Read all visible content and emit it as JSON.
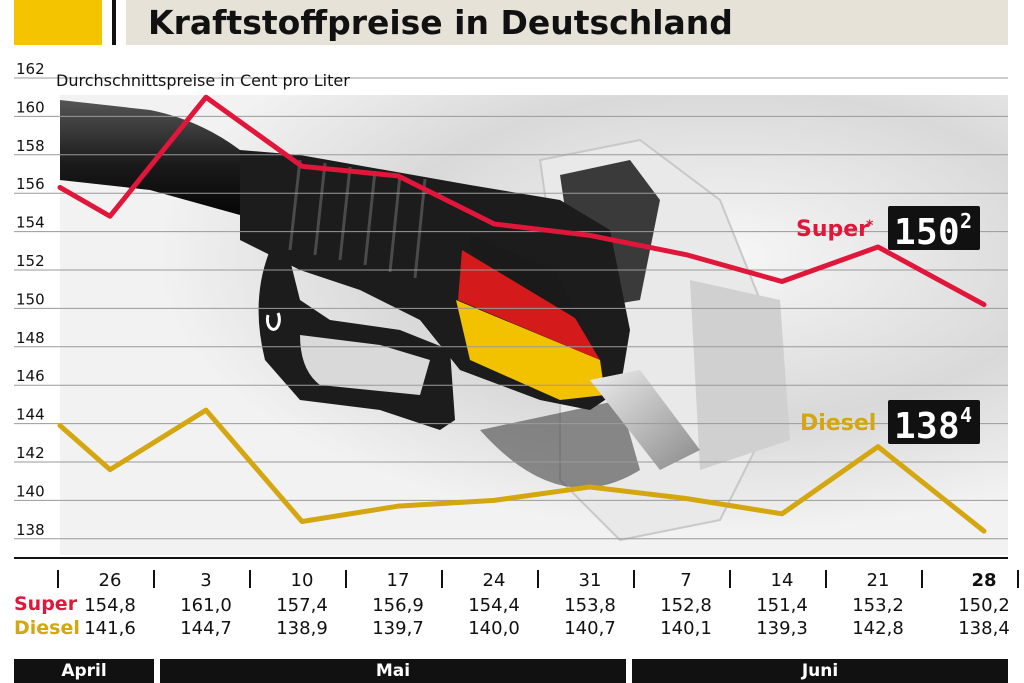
{
  "header": {
    "title": "Kraftstoffpreise in Deutschland"
  },
  "colors": {
    "super": "#e0163a",
    "diesel": "#d4a60f",
    "accent": "#f5c400"
  },
  "table": {
    "super_label": "Super",
    "diesel_label": "Diesel"
  },
  "months": [
    {
      "label": "April"
    },
    {
      "label": "Mai"
    },
    {
      "label": "Juni"
    }
  ],
  "chart_data": {
    "type": "line",
    "subtitle": "Durchschnittspreise in Cent pro Liter",
    "categories": [
      "26",
      "3",
      "10",
      "17",
      "24",
      "31",
      "7",
      "14",
      "21",
      "28"
    ],
    "highlight_category": "28",
    "ylim": [
      137,
      162
    ],
    "yticks": [
      138,
      140,
      142,
      144,
      146,
      148,
      150,
      152,
      154,
      156,
      158,
      160,
      162
    ],
    "grid": true,
    "series": [
      {
        "name": "Super",
        "marker": "*",
        "color": "#e0163a",
        "values": [
          154.8,
          161.0,
          157.4,
          156.9,
          154.4,
          153.8,
          152.8,
          151.4,
          153.2,
          150.2
        ],
        "value_labels": [
          "154,8",
          "161,0",
          "157,4",
          "156,9",
          "154,4",
          "153,8",
          "152,8",
          "151,4",
          "153,2",
          "150,2"
        ],
        "line_start": 156.3,
        "display": [
          "1",
          "5",
          "0",
          "2"
        ]
      },
      {
        "name": "Diesel",
        "color": "#d4a60f",
        "values": [
          141.6,
          144.7,
          138.9,
          139.7,
          140.0,
          140.7,
          140.1,
          139.3,
          142.8,
          138.4
        ],
        "value_labels": [
          "141,6",
          "144,7",
          "138,9",
          "139,7",
          "140,0",
          "140,7",
          "140,1",
          "139,3",
          "142,8",
          "138,4"
        ],
        "line_start": 143.9,
        "display": [
          "1",
          "3",
          "8",
          "4"
        ]
      }
    ]
  }
}
